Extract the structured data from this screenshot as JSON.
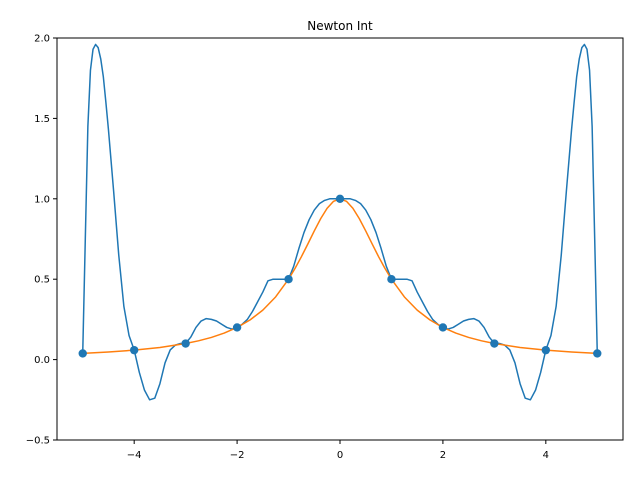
{
  "chart_data": {
    "type": "line",
    "title": "Newton Int",
    "xlabel": "",
    "ylabel": "",
    "xlim": [
      -5.5,
      5.5
    ],
    "ylim": [
      -0.5,
      2.0
    ],
    "xticks": [
      -4,
      -2,
      0,
      2,
      4
    ],
    "xtick_labels": [
      "−4",
      "−2",
      "0",
      "2",
      "4"
    ],
    "yticks": [
      -0.5,
      0.0,
      0.5,
      1.0,
      1.5,
      2.0
    ],
    "ytick_labels": [
      "−0.5",
      "0.0",
      "0.5",
      "1.0",
      "1.5",
      "2.0"
    ],
    "grid": false,
    "series": [
      {
        "kind": "line",
        "color": "#1f77b4",
        "x": [
          -5.0,
          -4.95,
          -4.9,
          -4.85,
          -4.8,
          -4.75,
          -4.7,
          -4.65,
          -4.6,
          -4.55,
          -4.5,
          -4.4,
          -4.3,
          -4.2,
          -4.1,
          -4.0,
          -3.9,
          -3.8,
          -3.7,
          -3.6,
          -3.5,
          -3.4,
          -3.3,
          -3.2,
          -3.1,
          -3.0,
          -2.9,
          -2.8,
          -2.7,
          -2.6,
          -2.5,
          -2.4,
          -2.3,
          -2.2,
          -2.1,
          -2.0,
          -1.9,
          -1.8,
          -1.7,
          -1.6,
          -1.5,
          -1.4,
          -1.3,
          -1.2,
          -1.1,
          -1.0,
          -0.9,
          -0.8,
          -0.7,
          -0.6,
          -0.5,
          -0.4,
          -0.3,
          -0.2,
          -0.1,
          0.0,
          0.1,
          0.2,
          0.3,
          0.4,
          0.5,
          0.6,
          0.7,
          0.8,
          0.9,
          1.0,
          1.1,
          1.2,
          1.3,
          1.4,
          1.5,
          1.6,
          1.7,
          1.8,
          1.9,
          2.0,
          2.1,
          2.2,
          2.3,
          2.4,
          2.5,
          2.6,
          2.7,
          2.8,
          2.9,
          3.0,
          3.1,
          3.2,
          3.3,
          3.4,
          3.5,
          3.6,
          3.7,
          3.8,
          3.9,
          4.0,
          4.1,
          4.2,
          4.3,
          4.4,
          4.5,
          4.55,
          4.6,
          4.65,
          4.7,
          4.75,
          4.8,
          4.85,
          4.9,
          4.95,
          5.0
        ],
        "y": [
          0.04,
          0.75,
          1.45,
          1.8,
          1.93,
          1.96,
          1.94,
          1.87,
          1.76,
          1.6,
          1.43,
          1.05,
          0.65,
          0.33,
          0.15,
          0.06,
          -0.08,
          -0.19,
          -0.25,
          -0.24,
          -0.15,
          -0.02,
          0.06,
          0.09,
          0.1,
          0.1,
          0.14,
          0.2,
          0.24,
          0.255,
          0.25,
          0.24,
          0.22,
          0.2,
          0.19,
          0.2,
          0.22,
          0.25,
          0.3,
          0.36,
          0.42,
          0.49,
          0.5,
          0.5,
          0.5,
          0.5,
          0.58,
          0.69,
          0.79,
          0.87,
          0.93,
          0.97,
          0.99,
          1.0,
          1.0,
          1.0,
          1.0,
          1.0,
          0.99,
          0.97,
          0.93,
          0.87,
          0.79,
          0.69,
          0.58,
          0.5,
          0.5,
          0.5,
          0.5,
          0.49,
          0.42,
          0.36,
          0.3,
          0.25,
          0.22,
          0.2,
          0.19,
          0.2,
          0.22,
          0.24,
          0.25,
          0.255,
          0.24,
          0.2,
          0.14,
          0.1,
          0.1,
          0.09,
          0.06,
          -0.02,
          -0.15,
          -0.24,
          -0.25,
          -0.19,
          -0.08,
          0.06,
          0.15,
          0.33,
          0.65,
          1.05,
          1.43,
          1.6,
          1.76,
          1.87,
          1.94,
          1.96,
          1.93,
          1.8,
          1.45,
          0.75,
          0.04
        ]
      },
      {
        "kind": "line",
        "color": "#ff7f0e",
        "x": [
          -5.0,
          -4.5,
          -4.0,
          -3.5,
          -3.0,
          -2.75,
          -2.5,
          -2.25,
          -2.0,
          -1.75,
          -1.5,
          -1.25,
          -1.0,
          -0.875,
          -0.75,
          -0.625,
          -0.5,
          -0.375,
          -0.25,
          -0.125,
          0.0,
          0.125,
          0.25,
          0.375,
          0.5,
          0.625,
          0.75,
          0.875,
          1.0,
          1.25,
          1.5,
          1.75,
          2.0,
          2.25,
          2.5,
          2.75,
          3.0,
          3.5,
          4.0,
          4.5,
          5.0
        ],
        "y": [
          0.0385,
          0.0471,
          0.0588,
          0.0755,
          0.1,
          0.1168,
          0.1379,
          0.1649,
          0.2,
          0.2462,
          0.3077,
          0.3902,
          0.5,
          0.5664,
          0.64,
          0.719,
          0.8,
          0.8767,
          0.9412,
          0.9846,
          1.0,
          0.9846,
          0.9412,
          0.8767,
          0.8,
          0.719,
          0.64,
          0.5664,
          0.5,
          0.3902,
          0.3077,
          0.2462,
          0.2,
          0.1649,
          0.1379,
          0.1168,
          0.1,
          0.0755,
          0.0588,
          0.0471,
          0.0385
        ]
      }
    ],
    "points": {
      "kind": "scatter",
      "color": "#1f77b4",
      "x": [
        -5,
        -4,
        -3,
        -2,
        -1,
        0,
        1,
        2,
        3,
        4,
        5
      ],
      "y": [
        0.0385,
        0.0588,
        0.1,
        0.2,
        0.5,
        1.0,
        0.5,
        0.2,
        0.1,
        0.0588,
        0.0385
      ]
    }
  }
}
